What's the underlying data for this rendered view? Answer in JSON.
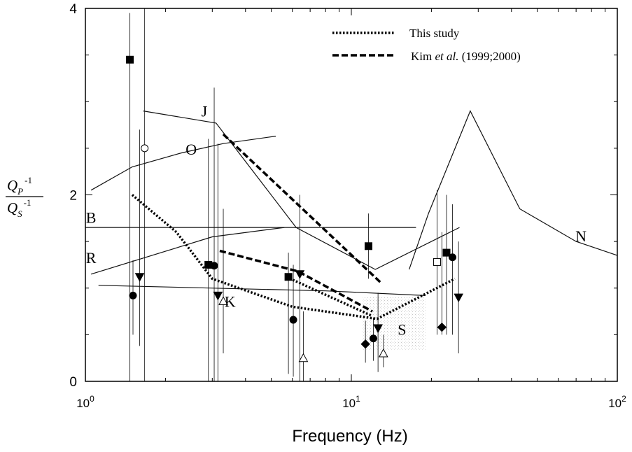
{
  "chart_data": {
    "type": "line",
    "xscale": "log",
    "xlim": [
      1,
      100
    ],
    "ylim": [
      0,
      4
    ],
    "xlabel": "Frequency  (Hz)",
    "ylabel": {
      "top": "Q",
      "top_sub": "P",
      "top_sup": "-1",
      "bottom": "Q",
      "bottom_sub": "S",
      "bottom_sup": "-1"
    },
    "x_ticks": [
      {
        "value": 1,
        "base": "10",
        "exp": "0"
      },
      {
        "value": 10,
        "base": "10",
        "exp": "1"
      },
      {
        "value": 100,
        "base": "10",
        "exp": "2"
      }
    ],
    "y_ticks": [
      {
        "value": 0,
        "label": "0"
      },
      {
        "value": 2,
        "label": "2"
      },
      {
        "value": 4,
        "label": "4"
      }
    ],
    "legend": {
      "placement": "top-right",
      "entries": [
        {
          "label": "This study",
          "style": "dotted"
        },
        {
          "label_pre": "Kim ",
          "label_em": "et al.",
          "label_post": " (1999;2000)",
          "style": "dashed"
        }
      ]
    },
    "curves": [
      {
        "label": "J",
        "label_at": [
          2.8,
          2.9
        ],
        "points": [
          [
            1.65,
            2.9
          ],
          [
            3.1,
            2.77
          ],
          [
            6.2,
            1.65
          ],
          [
            12.3,
            1.2
          ],
          [
            25.5,
            1.65
          ]
        ]
      },
      {
        "label": "O",
        "label_at": [
          2.5,
          2.49
        ],
        "points": [
          [
            1.05,
            2.05
          ],
          [
            1.5,
            2.3
          ],
          [
            2.3,
            2.45
          ],
          [
            3.3,
            2.55
          ],
          [
            5.2,
            2.63
          ]
        ]
      },
      {
        "label": "B",
        "label_at": [
          1.05,
          1.76
        ],
        "points": [
          [
            1.0,
            1.65
          ],
          [
            17.5,
            1.65
          ]
        ]
      },
      {
        "label": "R",
        "label_at": [
          1.05,
          1.33
        ],
        "points": [
          [
            1.05,
            1.15
          ],
          [
            3.0,
            1.55
          ],
          [
            5.6,
            1.65
          ]
        ]
      },
      {
        "label": "K",
        "label_at": [
          3.5,
          0.86
        ],
        "points": [
          [
            1.12,
            1.03
          ],
          [
            8.0,
            0.97
          ],
          [
            19.0,
            0.92
          ]
        ]
      },
      {
        "label": "N",
        "label_at": [
          73.0,
          1.56
        ],
        "points": [
          [
            16.5,
            1.2
          ],
          [
            19.5,
            1.8
          ],
          [
            28.0,
            2.9
          ],
          [
            43.0,
            1.85
          ],
          [
            70.0,
            1.5
          ],
          [
            100.0,
            1.35
          ]
        ]
      }
    ],
    "this_study": [
      {
        "points": [
          [
            1.5,
            2.0
          ],
          [
            2.2,
            1.6
          ],
          [
            3.0,
            1.1
          ],
          [
            6.0,
            0.8
          ],
          [
            12.5,
            0.67
          ],
          [
            24.5,
            1.1
          ]
        ]
      },
      {
        "points": [
          [
            5.7,
            1.12
          ],
          [
            12.0,
            0.7
          ]
        ]
      }
    ],
    "kim_et_al": [
      {
        "points": [
          [
            3.3,
            2.65
          ],
          [
            13.0,
            1.05
          ]
        ]
      },
      {
        "points": [
          [
            3.2,
            1.4
          ],
          [
            6.3,
            1.18
          ],
          [
            12.0,
            0.75
          ]
        ]
      }
    ],
    "region_s": {
      "label": "S",
      "label_at": [
        15.5,
        0.56
      ],
      "x_range": [
        11.0,
        19.0
      ],
      "y_range": [
        0.33,
        0.9
      ]
    },
    "markers": [
      {
        "symbol": "filled-square",
        "x": 1.47,
        "y": 3.45,
        "ylo": 0.0,
        "yhi": 3.95
      },
      {
        "symbol": "filled-circle",
        "x": 1.51,
        "y": 0.92,
        "ylo": 0.5,
        "yhi": 1.3
      },
      {
        "symbol": "filled-triangle-down",
        "x": 1.6,
        "y": 1.12,
        "ylo": 0.38,
        "yhi": 2.7
      },
      {
        "symbol": "open-circle",
        "x": 1.67,
        "y": 2.5,
        "ylo": 0.0,
        "yhi": 4.0
      },
      {
        "symbol": "filled-square",
        "x": 2.9,
        "y": 1.25,
        "ylo": 0.0,
        "yhi": 2.6
      },
      {
        "symbol": "filled-circle",
        "x": 3.05,
        "y": 1.24,
        "ylo": 0.0,
        "yhi": 3.15
      },
      {
        "symbol": "filled-triangle-down",
        "x": 3.15,
        "y": 0.92,
        "ylo": 0.0,
        "yhi": 2.55
      },
      {
        "symbol": "open-triangle-up",
        "x": 3.3,
        "y": 0.86,
        "ylo": 0.3,
        "yhi": 1.85
      },
      {
        "symbol": "filled-square",
        "x": 5.8,
        "y": 1.12,
        "ylo": 0.08,
        "yhi": 1.38
      },
      {
        "symbol": "filled-circle",
        "x": 6.05,
        "y": 0.66,
        "ylo": 0.05,
        "yhi": 1.25
      },
      {
        "symbol": "filled-triangle-down",
        "x": 6.4,
        "y": 1.15,
        "ylo": 0.0,
        "yhi": 2.0
      },
      {
        "symbol": "open-triangle-up",
        "x": 6.6,
        "y": 0.25,
        "ylo": 0.0,
        "yhi": 0.75
      },
      {
        "symbol": "filled-diamond",
        "x": 11.3,
        "y": 0.4,
        "ylo": 0.2,
        "yhi": 0.65
      },
      {
        "symbol": "filled-square",
        "x": 11.6,
        "y": 1.45,
        "ylo": 1.1,
        "yhi": 1.8
      },
      {
        "symbol": "filled-circle",
        "x": 12.1,
        "y": 0.46,
        "ylo": 0.22,
        "yhi": 0.68
      },
      {
        "symbol": "filled-triangle-down",
        "x": 12.6,
        "y": 0.57,
        "ylo": 0.1,
        "yhi": 0.95
      },
      {
        "symbol": "open-triangle-up",
        "x": 13.2,
        "y": 0.3,
        "ylo": 0.15,
        "yhi": 0.5
      },
      {
        "symbol": "open-square",
        "x": 21.0,
        "y": 1.28,
        "ylo": 0.5,
        "yhi": 2.05
      },
      {
        "symbol": "filled-diamond",
        "x": 21.9,
        "y": 0.58,
        "ylo": 0.5,
        "yhi": 1.6
      },
      {
        "symbol": "filled-square",
        "x": 22.8,
        "y": 1.38,
        "ylo": 0.5,
        "yhi": 2.0
      },
      {
        "symbol": "filled-circle",
        "x": 24.0,
        "y": 1.33,
        "ylo": 0.5,
        "yhi": 1.9
      },
      {
        "symbol": "filled-triangle-down",
        "x": 25.3,
        "y": 0.9,
        "ylo": 0.3,
        "yhi": 1.5
      }
    ]
  }
}
